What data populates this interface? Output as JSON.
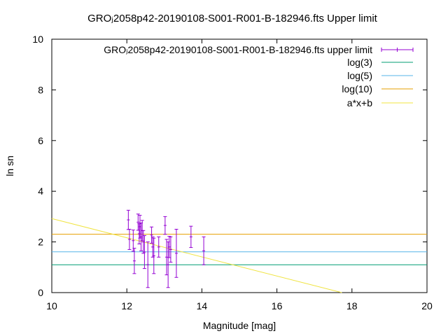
{
  "chart_data": {
    "type": "scatter",
    "title": "GROⱼ2058p42-20190108-S001-R001-B-182946.fts Upper limit",
    "xlabel": "Magnitude [mag]",
    "ylabel": "ln sn",
    "xlim": [
      10,
      20
    ],
    "ylim": [
      0,
      10
    ],
    "xticks": [
      "10",
      "12",
      "14",
      "16",
      "18",
      "20"
    ],
    "yticks": [
      "0",
      "2",
      "4",
      "6",
      "8",
      "10"
    ],
    "grid": false,
    "legend_position": "top-right",
    "series": [
      {
        "name": "GROⱼ2058p42-20190108-S001-R001-B-182946.fts upper limit",
        "kind": "errorbars",
        "color": "#9400d3",
        "points": [
          {
            "x": 12.04,
            "y": 2.87,
            "err": 0.38
          },
          {
            "x": 12.07,
            "y": 2.1,
            "err": 0.4
          },
          {
            "x": 12.17,
            "y": 2.05,
            "err": 0.42
          },
          {
            "x": 12.2,
            "y": 1.25,
            "err": 0.5
          },
          {
            "x": 12.3,
            "y": 2.78,
            "err": 0.32
          },
          {
            "x": 12.33,
            "y": 2.32,
            "err": 0.4
          },
          {
            "x": 12.35,
            "y": 2.6,
            "err": 0.45
          },
          {
            "x": 12.38,
            "y": 2.2,
            "err": 0.55
          },
          {
            "x": 12.41,
            "y": 2.45,
            "err": 0.4
          },
          {
            "x": 12.44,
            "y": 2.0,
            "err": 0.45
          },
          {
            "x": 12.47,
            "y": 1.6,
            "err": 0.65
          },
          {
            "x": 12.56,
            "y": 1.1,
            "err": 0.9
          },
          {
            "x": 12.66,
            "y": 2.27,
            "err": 0.32
          },
          {
            "x": 12.69,
            "y": 1.8,
            "err": 0.4
          },
          {
            "x": 12.72,
            "y": 1.45,
            "err": 0.7
          },
          {
            "x": 12.85,
            "y": 1.8,
            "err": 0.4
          },
          {
            "x": 13.02,
            "y": 2.65,
            "err": 0.35
          },
          {
            "x": 13.06,
            "y": 1.4,
            "err": 0.7
          },
          {
            "x": 13.1,
            "y": 1.1,
            "err": 0.9
          },
          {
            "x": 13.13,
            "y": 1.8,
            "err": 0.42
          },
          {
            "x": 13.17,
            "y": 1.7,
            "err": 0.5
          },
          {
            "x": 13.32,
            "y": 1.55,
            "err": 0.95
          },
          {
            "x": 13.71,
            "y": 2.2,
            "err": 0.42
          },
          {
            "x": 14.05,
            "y": 1.65,
            "err": 0.55
          }
        ]
      },
      {
        "name": "log(3)",
        "kind": "hline",
        "color": "#009e73",
        "y": 1.0986
      },
      {
        "name": "log(5)",
        "kind": "hline",
        "color": "#56b4e9",
        "y": 1.6094
      },
      {
        "name": "log(10)",
        "kind": "hline",
        "color": "#e69f00",
        "y": 2.3026
      },
      {
        "name": "a*x+b",
        "kind": "line",
        "color": "#f0e442",
        "x": [
          10,
          17.73
        ],
        "y": [
          2.92,
          0
        ]
      }
    ]
  }
}
